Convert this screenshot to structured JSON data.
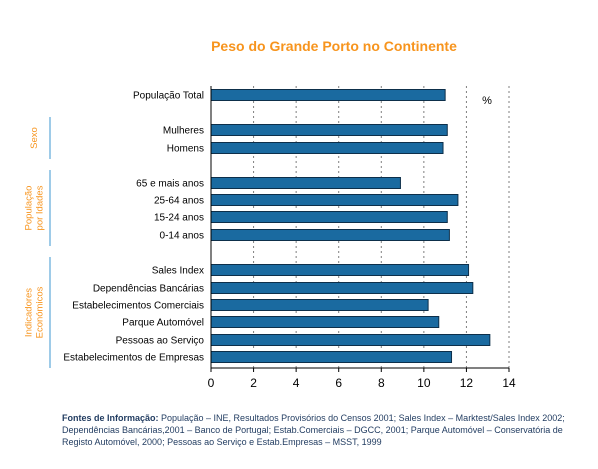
{
  "colors": {
    "title": "#f7941d",
    "group_label": "#f7941d",
    "group_bracket": "#9ecbe8",
    "bar_fill": "#1a6aa0",
    "bar_stroke": "#0d2f4a",
    "axis": "#000000",
    "grid": "#7f7f7f",
    "source_text": "#1f3a5f"
  },
  "chart_data": {
    "type": "bar",
    "orientation": "horizontal",
    "title": "Peso do Grande Porto no Continente",
    "unit_label": "%",
    "xlim": [
      0,
      14
    ],
    "xticks": [
      "0",
      "2",
      "4",
      "6",
      "8",
      "10",
      "12",
      "14"
    ],
    "grid": "vertical dotted",
    "categories": [
      "População Total",
      "Mulheres",
      "Homens",
      "65 e mais anos",
      "25-64 anos",
      "15-24 anos",
      "0-14 anos",
      "Sales Index",
      "Dependências Bancárias",
      "Estabelecimentos Comerciais",
      "Parque Automóvel",
      "Pessoas ao Serviço",
      "Estabelecimentos de Empresas"
    ],
    "values": [
      11.0,
      11.1,
      10.9,
      8.9,
      11.6,
      11.1,
      11.2,
      12.1,
      12.3,
      10.2,
      10.7,
      13.1,
      11.3
    ],
    "groups": [
      {
        "label_lines": [
          "Sexo"
        ],
        "categories": [
          "Mulheres",
          "Homens"
        ]
      },
      {
        "label_lines": [
          "População",
          "por Idades"
        ],
        "categories": [
          "65 e mais anos",
          "25-64 anos",
          "15-24 anos",
          "0-14 anos"
        ]
      },
      {
        "label_lines": [
          "Indicadores",
          "Económicos"
        ],
        "categories": [
          "Sales Index",
          "Dependências Bancárias",
          "Estabelecimentos Comerciais",
          "Parque Automóvel",
          "Pessoas ao Serviço",
          "Estabelecimentos de Empresas"
        ]
      }
    ]
  },
  "source": {
    "heading": "Fontes de Informação:",
    "text": " População – INE, Resultados Provisórios do Censos 2001; Sales Index – Marktest/Sales Index 2002; Dependências Bancárias,2001 – Banco de Portugal; Estab.Comerciais – DGCC, 2001; Parque Automóvel – Conservatória de Registo Automóvel, 2000; Pessoas ao Serviço e Estab.Empresas – MSST, 1999"
  }
}
